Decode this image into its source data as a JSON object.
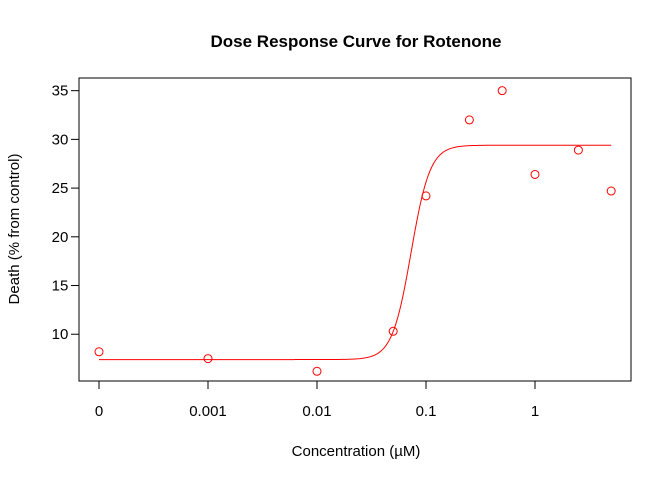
{
  "chart_data": {
    "type": "scatter",
    "title": "Dose Response Curve for Rotenone",
    "xlabel": "Concentration (µM)",
    "ylabel": "Death (% from control)",
    "x_scale": "log",
    "x_ticks": [
      {
        "value": 0,
        "label": "0"
      },
      {
        "value": 0.001,
        "label": "0.001"
      },
      {
        "value": 0.01,
        "label": "0.01"
      },
      {
        "value": 0.1,
        "label": "0.1"
      },
      {
        "value": 1,
        "label": "1"
      }
    ],
    "y_ticks": [
      10,
      15,
      20,
      25,
      30,
      35
    ],
    "ylim": [
      5.2,
      36.3
    ],
    "grid": false,
    "legend": "none",
    "color": "#ff0000",
    "points": [
      {
        "x": 0,
        "y": 8.2
      },
      {
        "x": 0.001,
        "y": 7.5
      },
      {
        "x": 0.01,
        "y": 6.2
      },
      {
        "x": 0.05,
        "y": 10.3
      },
      {
        "x": 0.1,
        "y": 24.2
      },
      {
        "x": 0.25,
        "y": 32.0
      },
      {
        "x": 0.5,
        "y": 35.0
      },
      {
        "x": 1,
        "y": 26.4
      },
      {
        "x": 2.5,
        "y": 28.9
      },
      {
        "x": 5,
        "y": 24.7
      }
    ],
    "fit_curve": {
      "lower": 7.4,
      "upper": 29.4,
      "ec50": 0.073,
      "hill_slope": 5.0,
      "x_range": [
        0,
        5
      ]
    }
  }
}
